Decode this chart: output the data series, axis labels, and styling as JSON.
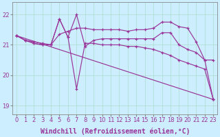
{
  "background_color": "#cceeff",
  "line_color": "#993399",
  "grid_color": "#aaddcc",
  "xlabel": "Windchill (Refroidissement éolien,°C)",
  "xlabel_fontsize": 7.0,
  "ylabel_ticks": [
    19,
    20,
    21,
    22
  ],
  "xlim": [
    -0.5,
    23.5
  ],
  "ylim": [
    18.7,
    22.4
  ],
  "xtick_labels": [
    "0",
    "1",
    "2",
    "3",
    "4",
    "5",
    "6",
    "7",
    "8",
    "9",
    "10",
    "11",
    "12",
    "13",
    "14",
    "15",
    "16",
    "17",
    "18",
    "19",
    "20",
    "21",
    "22",
    "23"
  ],
  "series1_x": [
    0,
    1,
    2,
    3,
    4,
    5,
    6,
    7,
    8,
    9,
    10,
    11,
    12,
    13,
    14,
    15,
    16,
    17,
    18,
    19,
    20,
    21,
    22,
    23
  ],
  "series1_y": [
    21.3,
    21.15,
    21.1,
    21.05,
    21.0,
    21.35,
    21.45,
    21.55,
    21.55,
    21.5,
    21.5,
    21.5,
    21.5,
    21.45,
    21.5,
    21.5,
    21.55,
    21.75,
    21.75,
    21.6,
    21.55,
    21.1,
    20.5,
    20.5
  ],
  "series2_x": [
    0,
    1,
    2,
    3,
    4,
    5,
    6,
    7,
    8,
    9,
    10,
    11,
    12,
    13,
    14,
    15,
    16,
    17,
    18,
    19,
    20,
    21,
    22,
    23
  ],
  "series2_y": [
    21.3,
    21.15,
    21.05,
    21.0,
    21.0,
    21.85,
    21.25,
    22.0,
    20.95,
    21.15,
    21.2,
    21.2,
    21.2,
    21.2,
    21.2,
    21.2,
    21.2,
    21.4,
    21.4,
    21.0,
    20.85,
    20.75,
    20.5,
    19.2
  ],
  "series3_x": [
    0,
    23
  ],
  "series3_y": [
    21.3,
    19.2
  ],
  "series4_x": [
    0,
    1,
    2,
    3,
    4,
    5,
    6,
    7,
    8,
    9,
    10,
    11,
    12,
    13,
    14,
    15,
    16,
    17,
    18,
    19,
    20,
    21,
    22,
    23
  ],
  "series4_y": [
    21.3,
    21.15,
    21.05,
    21.0,
    21.0,
    21.85,
    21.25,
    19.55,
    21.05,
    21.05,
    21.0,
    21.0,
    21.0,
    20.95,
    20.95,
    20.9,
    20.85,
    20.75,
    20.65,
    20.5,
    20.4,
    20.3,
    20.2,
    19.2
  ],
  "tick_fontsize": 6.0,
  "marker_size": 3.0,
  "linewidth": 0.85
}
